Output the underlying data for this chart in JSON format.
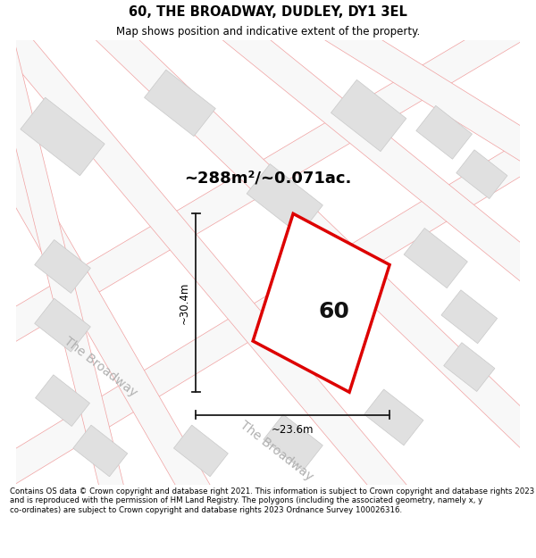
{
  "title": "60, THE BROADWAY, DUDLEY, DY1 3EL",
  "subtitle": "Map shows position and indicative extent of the property.",
  "area_label": "~288m²/~0.071ac.",
  "number_label": "60",
  "width_label": "~23.6m",
  "height_label": "~30.4m",
  "footer": "Contains OS data © Crown copyright and database right 2021. This information is subject to Crown copyright and database rights 2023 and is reproduced with the permission of HM Land Registry. The polygons (including the associated geometry, namely x, y co-ordinates) are subject to Crown copyright and database rights 2023 Ordnance Survey 100026316.",
  "map_bg": "#ffffff",
  "road_line_color": "#f0a0a0",
  "road_fill_color": "#f0f0f0",
  "building_fill": "#e0e0e0",
  "building_edge": "#c8c8c8",
  "plot_fill": "#ffffff",
  "plot_border": "#dd0000",
  "street_label_color": "#b0b0b0",
  "dim_line_color": "#1a1a1a",
  "text_dark": "#111111"
}
